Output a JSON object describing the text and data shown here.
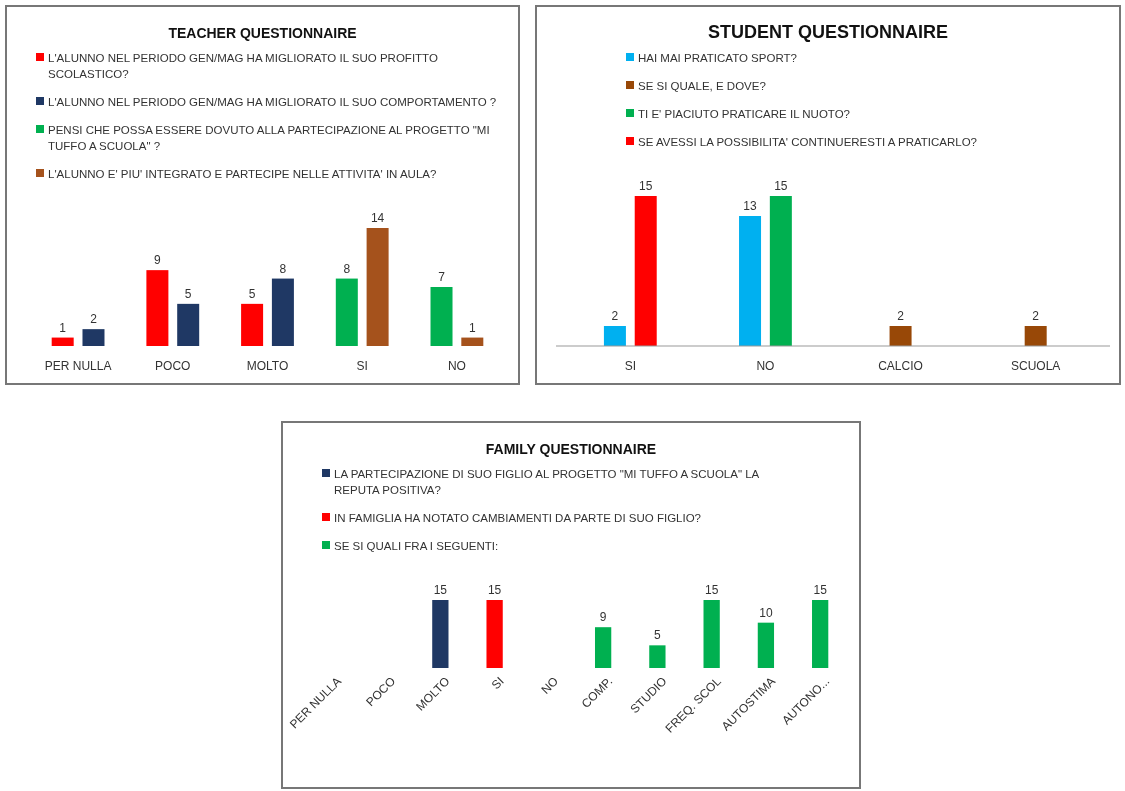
{
  "chart_data": [
    {
      "type": "bar",
      "title": "TEACHER QUESTIONNAIRE",
      "categories": [
        "PER NULLA",
        "POCO",
        "MOLTO",
        "SI",
        "NO"
      ],
      "legend": "top",
      "data_labels": true,
      "series": [
        {
          "name": "L'ALUNNO NEL PERIODO GEN/MAG HA MIGLIORATO IL SUO PROFITTO SCOLASTICO?",
          "color": "#ff0000",
          "values": [
            1,
            9,
            5,
            null,
            null
          ]
        },
        {
          "name": "L'ALUNNO NEL PERIODO GEN/MAG HA MIGLIORATO IL SUO COMPORTAMENTO ?",
          "color": "#1f3864",
          "values": [
            2,
            5,
            8,
            null,
            null
          ]
        },
        {
          "name": "PENSI CHE POSSA ESSERE DOVUTO ALLA PARTECIPAZIONE AL PROGETTO \"MI TUFFO A SCUOLA\" ?",
          "color": "#00b050",
          "values": [
            null,
            null,
            null,
            8,
            7
          ]
        },
        {
          "name": "L'ALUNNO E' PIU' INTEGRATO E PARTECIPE NELLE ATTIVITA' IN AULA?",
          "color": "#a5521c",
          "values": [
            null,
            null,
            null,
            14,
            1
          ]
        }
      ]
    },
    {
      "type": "bar",
      "title": "STUDENT QUESTIONNAIRE",
      "categories": [
        "SI",
        "NO",
        "CALCIO",
        "SCUOLA"
      ],
      "legend": "top",
      "data_labels": true,
      "series": [
        {
          "name": "HAI MAI PRATICATO SPORT?",
          "color": "#00b0f0",
          "values": [
            2,
            13,
            null,
            null
          ]
        },
        {
          "name": "SE SI QUALE, E DOVE?",
          "color": "#984807",
          "values": [
            null,
            null,
            2,
            2
          ]
        },
        {
          "name": "TI E' PIACIUTO PRATICARE  IL NUOTO?",
          "color": "#00b050",
          "values": [
            null,
            15,
            null,
            null
          ]
        },
        {
          "name": "SE AVESSI LA POSSIBILITA' CONTINUERESTI A PRATICARLO?",
          "color": "#ff0000",
          "values": [
            15,
            null,
            null,
            null
          ]
        }
      ]
    },
    {
      "type": "bar",
      "title": "FAMILY QUESTIONNAIRE",
      "categories": [
        "PER NULLA",
        "POCO",
        "MOLTO",
        "SI",
        "NO",
        "COMP.",
        "STUDIO",
        "FREQ. SCOL",
        "AUTOSTIMA",
        "AUTONO..."
      ],
      "legend": "top",
      "data_labels": true,
      "series": [
        {
          "name": "LA PARTECIPAZIONE DI SUO FIGLIO AL PROGETTO \"MI TUFFO A SCUOLA\" LA REPUTA POSITIVA?",
          "color": "#1f3864",
          "values": [
            null,
            null,
            15,
            null,
            null,
            null,
            null,
            null,
            null,
            null
          ]
        },
        {
          "name": "IN FAMIGLIA HA NOTATO CAMBIAMENTI DA PARTE DI SUO FIGLIO?",
          "color": "#ff0000",
          "values": [
            null,
            null,
            null,
            15,
            null,
            null,
            null,
            null,
            null,
            null
          ]
        },
        {
          "name": "SE SI QUALI FRA I SEGUENTI:",
          "color": "#00b050",
          "values": [
            null,
            null,
            null,
            null,
            null,
            9,
            5,
            15,
            10,
            15
          ]
        }
      ]
    }
  ]
}
